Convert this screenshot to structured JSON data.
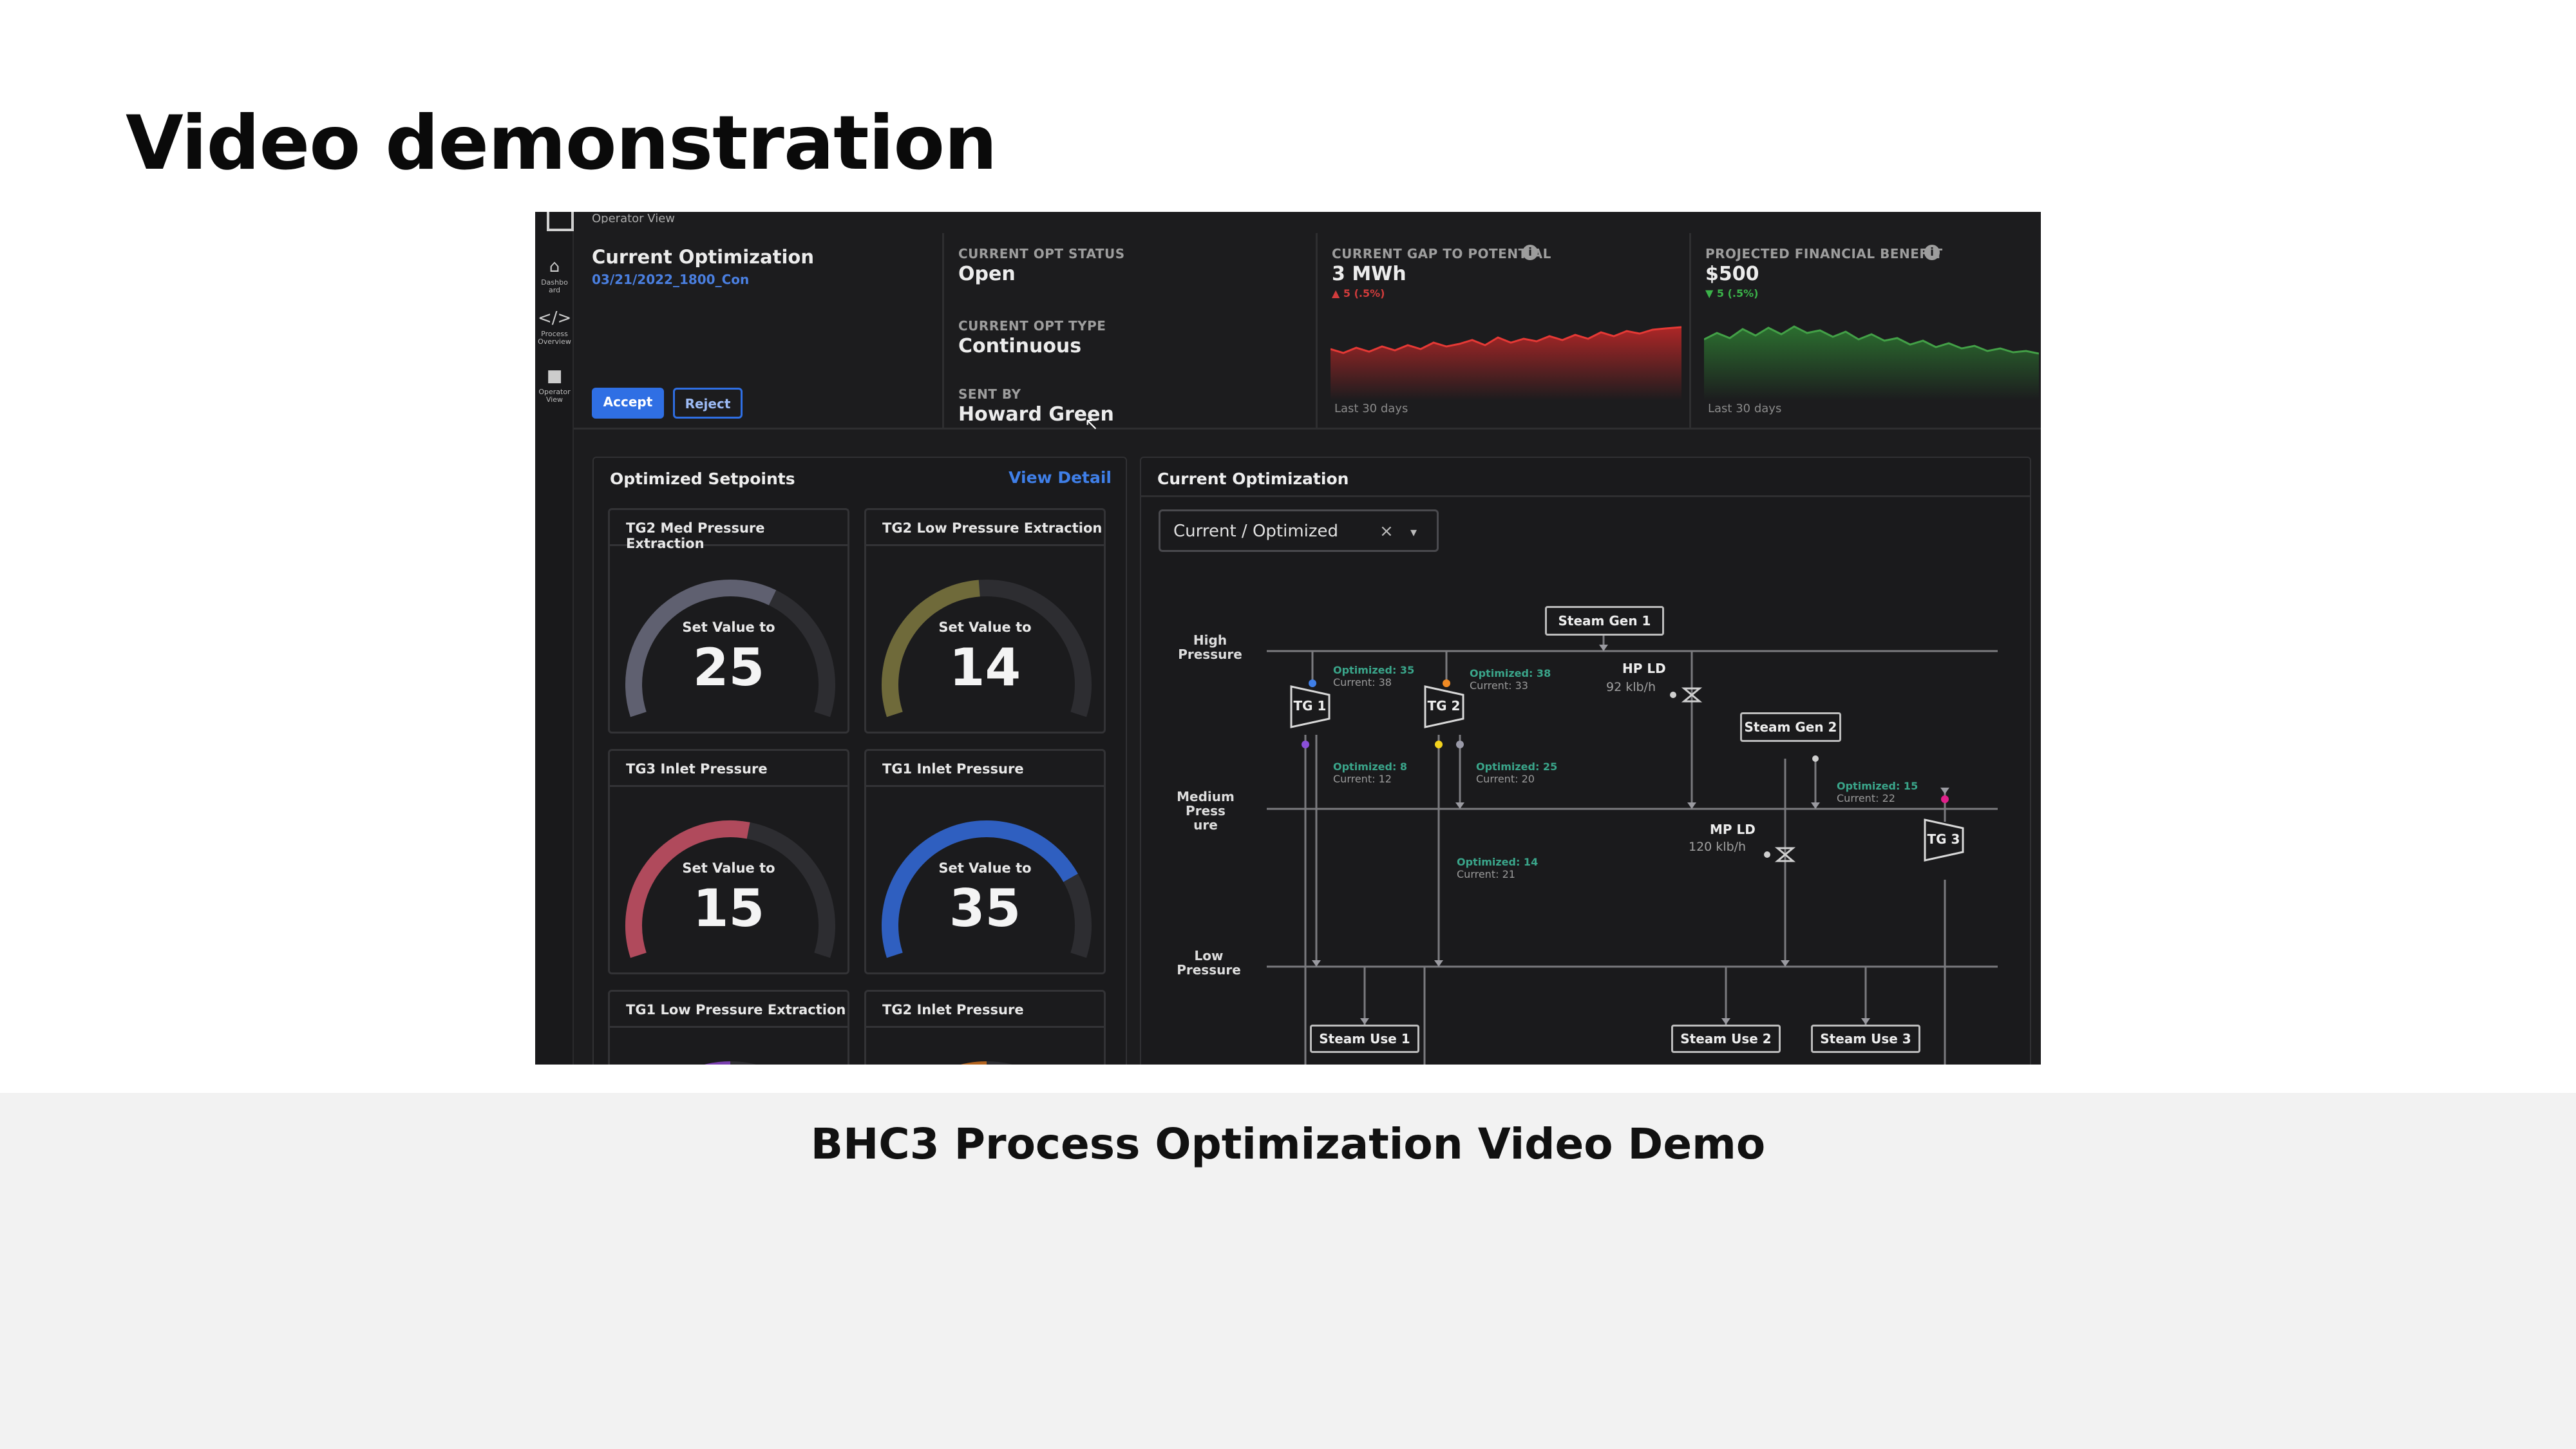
{
  "slide": {
    "title": "Video demonstration",
    "caption": "BHC3 Process Optimization Video Demo"
  },
  "app": {
    "top_tab": "Operator View",
    "nav": [
      {
        "label": "Dashbo ard",
        "icon": "home-icon"
      },
      {
        "label": "Process Overview",
        "icon": "code-icon"
      },
      {
        "label": "Operator View",
        "icon": "operator-icon"
      }
    ],
    "optimization": {
      "title": "Current Optimization",
      "id": "03/21/2022_1800_Con",
      "accept": "Accept",
      "reject": "Reject"
    },
    "status": {
      "status_label": "CURRENT OPT STATUS",
      "status_value": "Open",
      "type_label": "CURRENT OPT TYPE",
      "type_value": "Continuous",
      "sent_label": "SENT BY",
      "sent_value": "Howard Green"
    },
    "gap": {
      "label": "CURRENT GAP TO POTENTIAL",
      "value": "3 MWh",
      "delta": "▲ 5 (.5%)",
      "period": "Last 30 days",
      "color": "#c62828"
    },
    "benefit": {
      "label": "PROJECTED FINANCIAL BENEFIT",
      "value": "$500",
      "delta": "▼ 5 (.5%)",
      "period": "Last 30 days",
      "color": "#2e7d32"
    },
    "setpoints": {
      "title": "Optimized Setpoints",
      "link": "View Detail",
      "gauges": [
        {
          "title": "TG2 Med Pressure Extraction",
          "prefix": "Set Value to",
          "value": "25",
          "fraction": 0.62,
          "color": "#5f6070"
        },
        {
          "title": "TG2 Low Pressure Extraction",
          "prefix": "Set Value to",
          "value": "14",
          "fraction": 0.48,
          "color": "#6f6a3a"
        },
        {
          "title": "TG3 Inlet Pressure",
          "prefix": "Set Value to",
          "value": "15",
          "fraction": 0.55,
          "color": "#b04a5c"
        },
        {
          "title": "TG1 Inlet Pressure",
          "prefix": "Set Value to",
          "value": "35",
          "fraction": 0.78,
          "color": "#2f5fc0"
        },
        {
          "title": "TG1 Low Pressure Extraction",
          "prefix": "",
          "value": "",
          "fraction": 0.5,
          "color": "#7a3fb0"
        },
        {
          "title": "TG2 Inlet Pressure",
          "prefix": "",
          "value": "",
          "fraction": 0.5,
          "color": "#b4641e"
        }
      ]
    },
    "diagram": {
      "title": "Current Optimization",
      "dropdown": "Current / Optimized",
      "levels": {
        "high": "High Pressure",
        "medium": "Medium Press ure",
        "low": "Low Pressure"
      },
      "steam_gen_1": "Steam Gen 1",
      "steam_gen_2": "Steam Gen 2",
      "tg1": "TG 1",
      "tg2": "TG 2",
      "tg3": "TG 3",
      "hp_ld": "HP LD",
      "hp_ld_flow": "92 klb/h",
      "mp_ld": "MP LD",
      "mp_ld_flow": "120 klb/h",
      "use1": "Steam Use 1",
      "use2": "Steam Use 2",
      "use3": "Steam Use 3",
      "ann": [
        {
          "opt": "Optimized: 35",
          "cur": "Current: 38"
        },
        {
          "opt": "Optimized: 38",
          "cur": "Current: 33"
        },
        {
          "opt": "Optimized: 8",
          "cur": "Current: 12"
        },
        {
          "opt": "Optimized: 25",
          "cur": "Current: 20"
        },
        {
          "opt": "Optimized: 14",
          "cur": "Current: 21"
        },
        {
          "opt": "Optimized: 15",
          "cur": "Current: 22"
        }
      ],
      "accent": "#3aa58a"
    }
  }
}
